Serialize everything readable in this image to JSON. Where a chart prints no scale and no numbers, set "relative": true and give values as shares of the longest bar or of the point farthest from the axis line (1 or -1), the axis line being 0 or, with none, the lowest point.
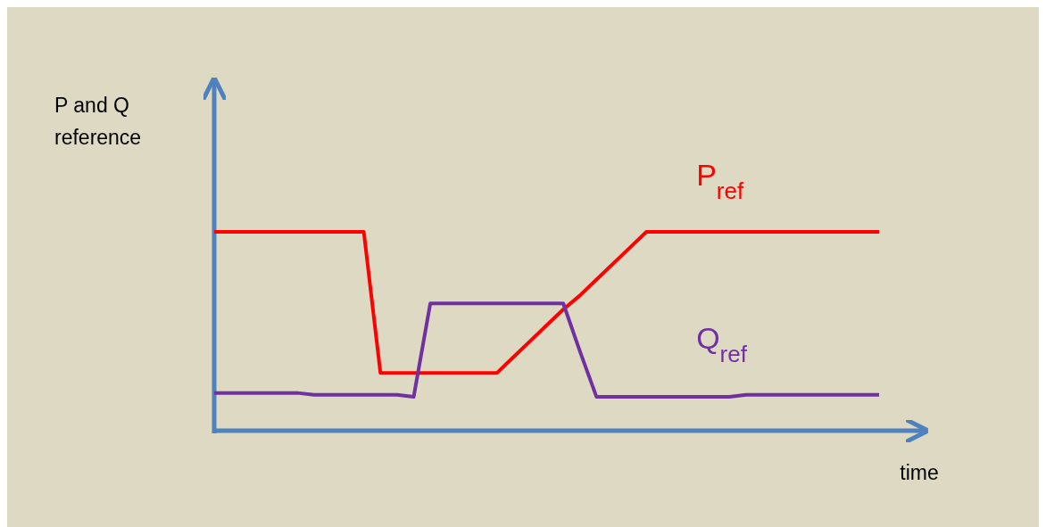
{
  "chart_data": {
    "type": "line",
    "relative": true,
    "annotations": [
      "P and Q reference"
    ],
    "xlabel": "time",
    "categories": [
      null,
      null,
      null,
      null,
      null,
      null,
      null,
      null,
      null,
      null,
      null,
      null,
      null,
      null,
      null,
      null,
      null,
      null,
      null,
      null,
      null,
      null,
      null,
      null,
      null,
      null,
      null,
      null,
      null,
      null,
      null,
      null,
      null,
      null,
      null,
      null,
      null,
      null,
      null,
      null,
      null
    ],
    "series": [
      {
        "name": "P$_{ref}$",
        "color": "#ff0000",
        "values": [
          1,
          1,
          1,
          1,
          1,
          1,
          1,
          1,
          1,
          1,
          0.29,
          0.29,
          0.29,
          0.29,
          0.29,
          0.29,
          0.29,
          0.29,
          0.37,
          0.45,
          0.53,
          0.61,
          0.68,
          0.76,
          0.84,
          0.92,
          1,
          1,
          1,
          1,
          1,
          1,
          1,
          1,
          1,
          1,
          1,
          1,
          1,
          1,
          1
        ]
      },
      {
        "name": "Q$_{ref}$",
        "color": "#7030a0",
        "values": [
          0.19,
          0.19,
          0.19,
          0.19,
          0.19,
          0.19,
          0.18,
          0.18,
          0.18,
          0.18,
          0.18,
          0.18,
          0.17,
          0.64,
          0.64,
          0.64,
          0.64,
          0.64,
          0.64,
          0.64,
          0.64,
          0.64,
          0.4,
          0.17,
          0.17,
          0.17,
          0.17,
          0.17,
          0.17,
          0.17,
          0.17,
          0.17,
          0.18,
          0.18,
          0.18,
          0.18,
          0.18,
          0.18,
          0.18,
          0.18,
          0.18
        ]
      }
    ]
  }
}
